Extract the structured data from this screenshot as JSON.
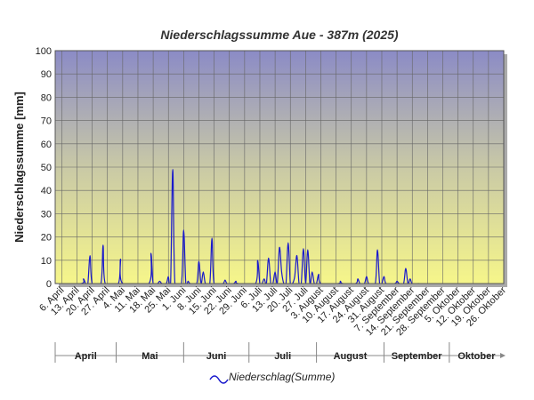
{
  "chart_data": {
    "type": "line",
    "title": "Niederschlagssumme Aue - 387m (2025)",
    "y_label": "Niederschlagssumme [mm]",
    "xlim": [
      0,
      206
    ],
    "ylim": [
      0,
      100
    ],
    "yticks": [
      0,
      10,
      20,
      30,
      40,
      50,
      60,
      70,
      80,
      90,
      100
    ],
    "grid": true,
    "xticks": [
      {
        "value": 3,
        "label": "6. April"
      },
      {
        "value": 10,
        "label": "13. April"
      },
      {
        "value": 17,
        "label": "20. April"
      },
      {
        "value": 24,
        "label": "27. April"
      },
      {
        "value": 31,
        "label": "4. Mai"
      },
      {
        "value": 38,
        "label": "11. Mai"
      },
      {
        "value": 45,
        "label": "18. Mai"
      },
      {
        "value": 52,
        "label": "25. Mai"
      },
      {
        "value": 59,
        "label": "1. Juni"
      },
      {
        "value": 66,
        "label": "8. Juni"
      },
      {
        "value": 73,
        "label": "15. Juni"
      },
      {
        "value": 80,
        "label": "22. Juni"
      },
      {
        "value": 87,
        "label": "29. Juni"
      },
      {
        "value": 94,
        "label": "6. Juli"
      },
      {
        "value": 101,
        "label": "13. Juli"
      },
      {
        "value": 108,
        "label": "20. Juli"
      },
      {
        "value": 115,
        "label": "27. Juli"
      },
      {
        "value": 122,
        "label": "3. August"
      },
      {
        "value": 129,
        "label": "10. August"
      },
      {
        "value": 136,
        "label": "17. August"
      },
      {
        "value": 143,
        "label": "24. August"
      },
      {
        "value": 150,
        "label": "31. August"
      },
      {
        "value": 157,
        "label": "7. September"
      },
      {
        "value": 164,
        "label": "14. September"
      },
      {
        "value": 171,
        "label": "21. September"
      },
      {
        "value": 178,
        "label": "28. September"
      },
      {
        "value": 185,
        "label": "5. Oktober"
      },
      {
        "value": 192,
        "label": "12. Oktober"
      },
      {
        "value": 199,
        "label": "19. Oktober"
      },
      {
        "value": 206,
        "label": "26. Oktober"
      }
    ],
    "months": [
      {
        "label": "April",
        "start": 0,
        "end": 28
      },
      {
        "label": "Mai",
        "start": 28,
        "end": 59
      },
      {
        "label": "Juni",
        "start": 59,
        "end": 89
      },
      {
        "label": "Juli",
        "start": 89,
        "end": 120
      },
      {
        "label": "August",
        "start": 120,
        "end": 151
      },
      {
        "label": "September",
        "start": 151,
        "end": 181
      },
      {
        "label": "Oktober",
        "start": 181,
        "end": 206
      }
    ],
    "series": [
      {
        "name": "Niederschlag(Summe)",
        "color": "#1a1acc",
        "x": [
          0,
          12,
          13,
          14,
          15,
          16,
          17,
          21,
          22,
          23,
          29,
          30,
          31,
          43,
          44,
          45,
          47,
          48,
          49,
          51,
          52,
          53,
          54,
          55,
          58,
          59,
          60,
          61,
          62,
          65,
          66,
          67,
          68,
          69,
          71,
          72,
          73,
          77,
          78,
          79,
          82,
          83,
          84,
          92,
          93,
          94,
          95,
          96,
          97,
          98,
          99,
          100,
          101,
          102,
          103,
          104,
          105,
          106,
          107,
          108,
          109,
          110,
          111,
          112,
          113,
          114,
          115,
          116,
          117,
          118,
          119,
          120,
          121,
          122,
          130,
          131,
          132,
          138,
          139,
          140,
          142,
          143,
          144,
          147,
          148,
          149,
          150,
          151,
          152,
          156,
          157,
          158,
          160,
          161,
          162,
          163,
          164,
          167
        ],
        "values": [
          0,
          0,
          2,
          0,
          0,
          12,
          0,
          0,
          16.5,
          0,
          0,
          10.5,
          0,
          0,
          13,
          0,
          0,
          1,
          0,
          0,
          3,
          0,
          49,
          0,
          0,
          23,
          0,
          1,
          0,
          0,
          9.5,
          0,
          5,
          0,
          0,
          19.5,
          0,
          0,
          1.5,
          0,
          0,
          1,
          0,
          0,
          10,
          0,
          0,
          2,
          0,
          11,
          0,
          0,
          5,
          0,
          15.5,
          5,
          0,
          0,
          17.5,
          0,
          0,
          3,
          12,
          0,
          0,
          15,
          0,
          14.5,
          0,
          5,
          0,
          0,
          4,
          0,
          0,
          1,
          0,
          0,
          2,
          0,
          0,
          3,
          0,
          0,
          14.5,
          0,
          0,
          3,
          0,
          0,
          1,
          0,
          0,
          6.5,
          0,
          2,
          0,
          0
        ]
      }
    ]
  }
}
